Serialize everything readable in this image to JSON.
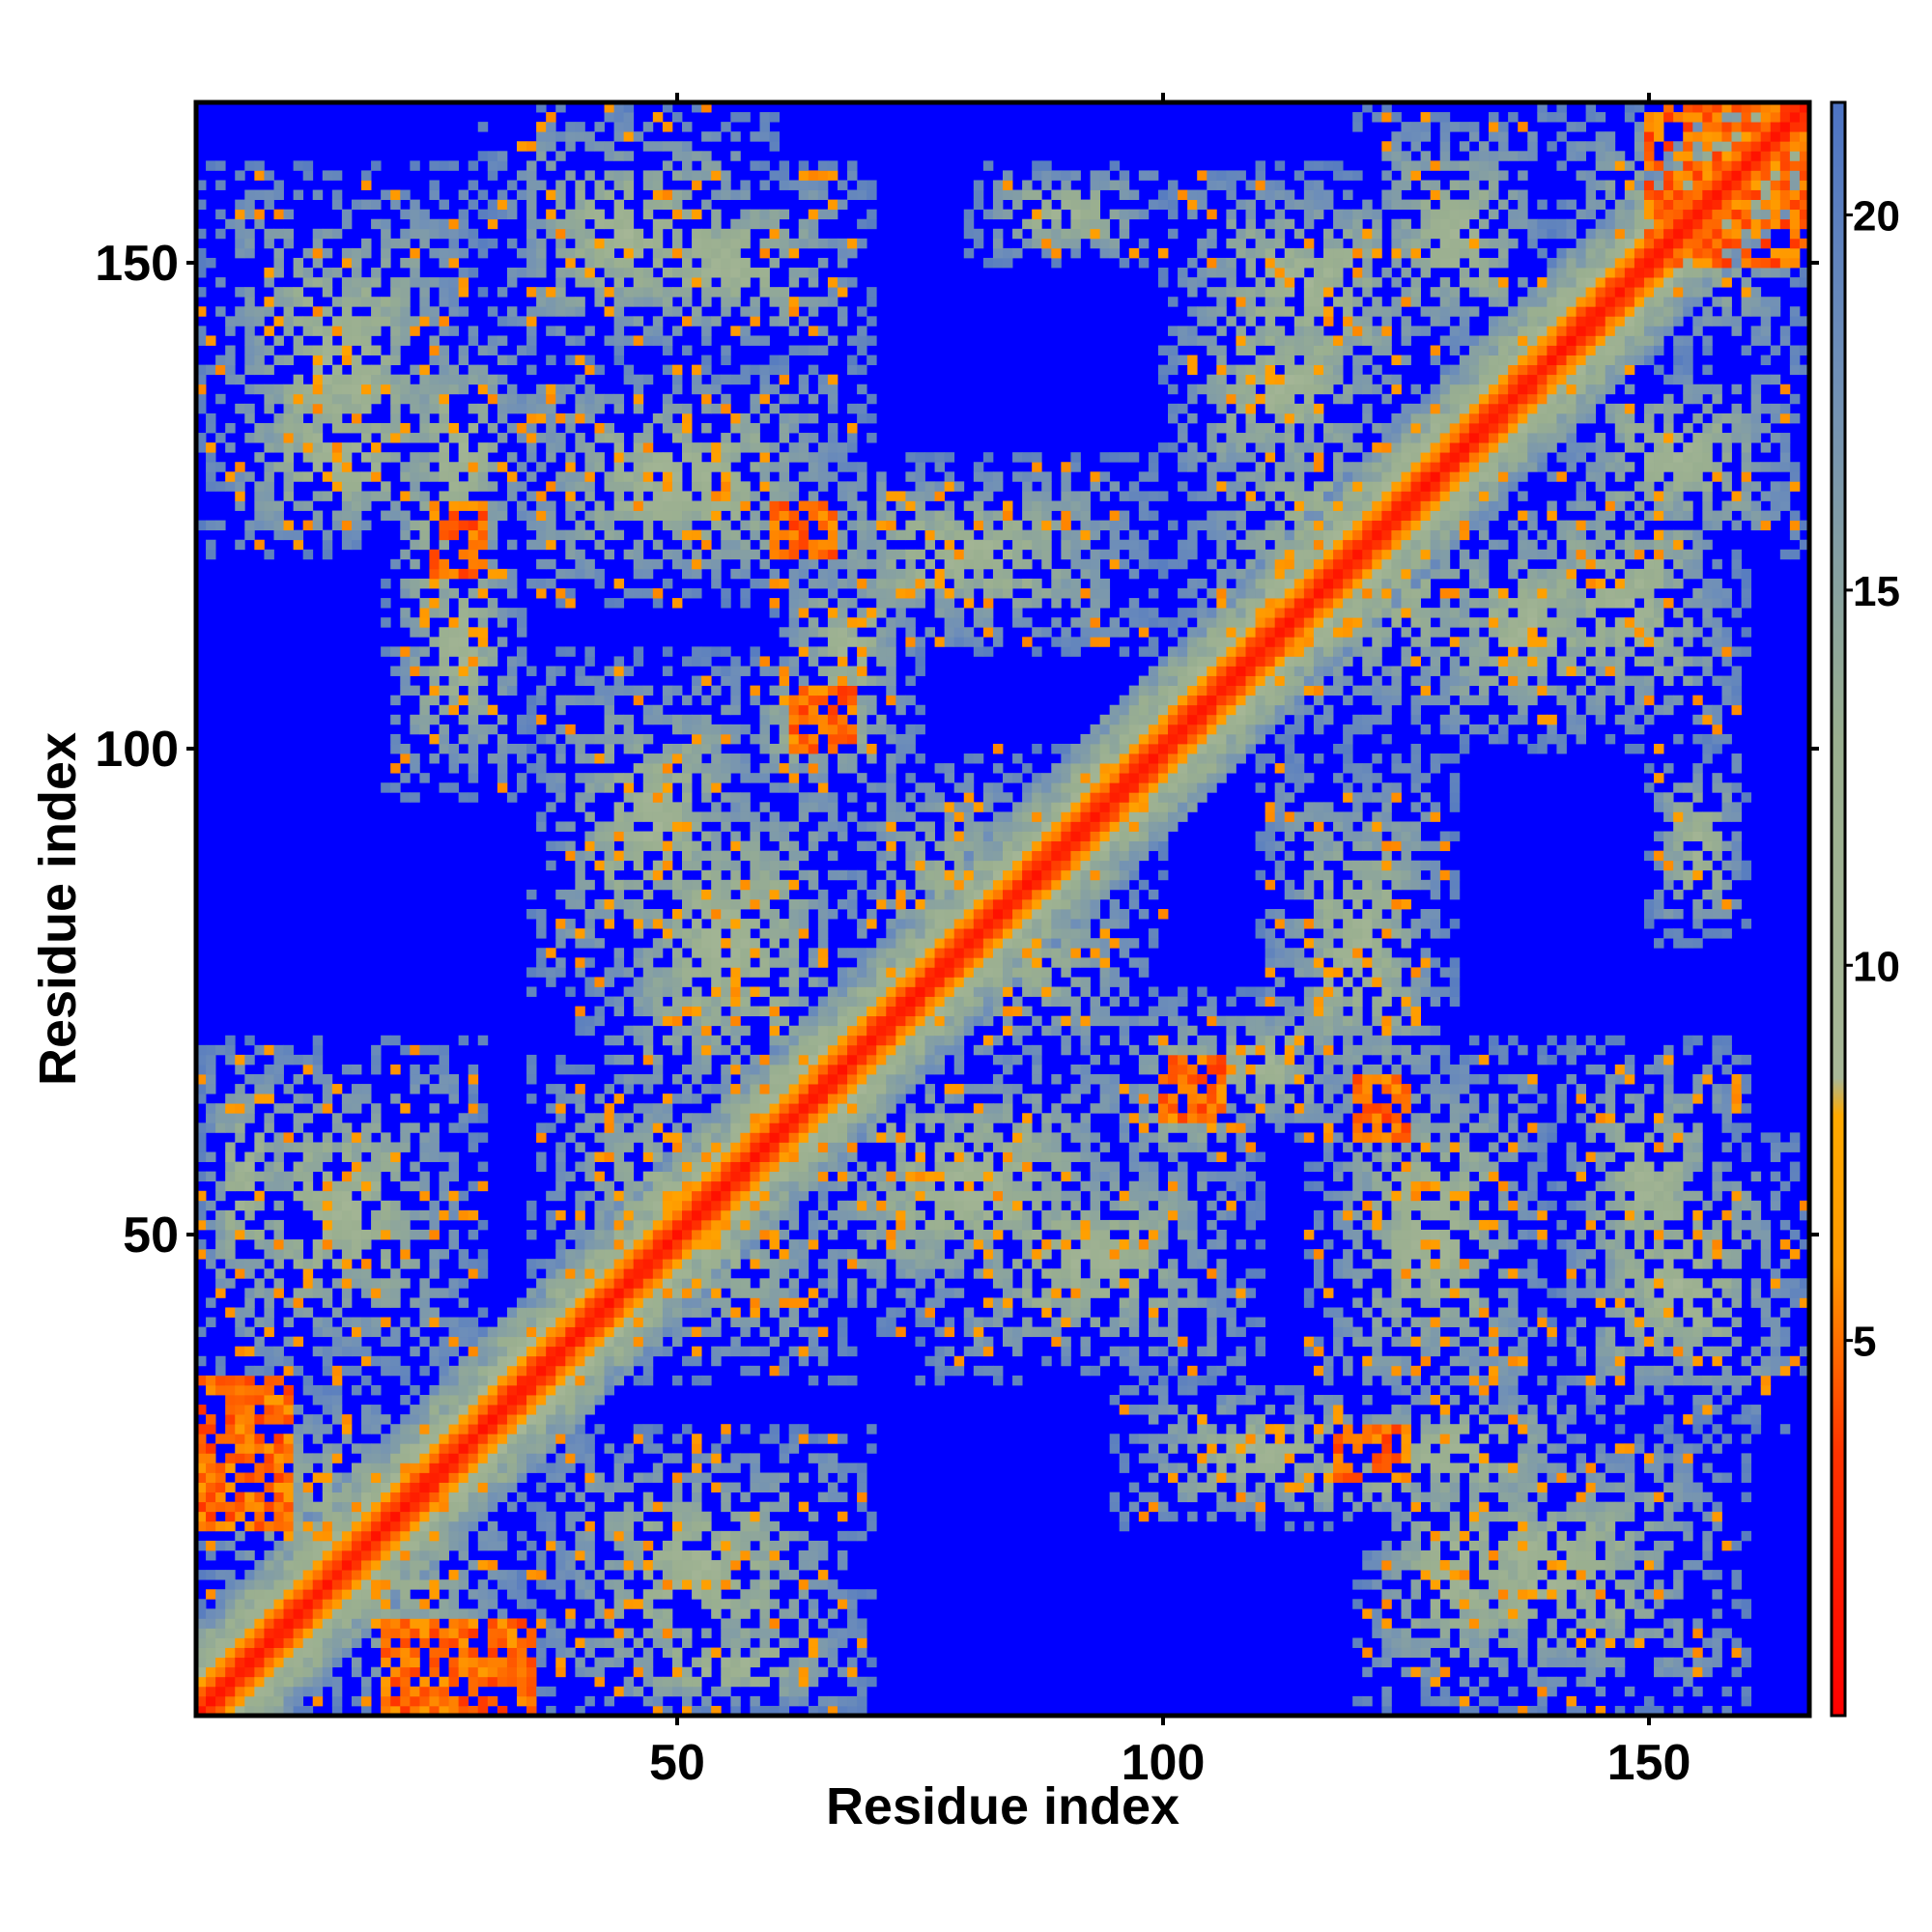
{
  "chart_data": {
    "type": "heatmap",
    "title": "",
    "xlabel": "Residue index",
    "ylabel": "Residue index",
    "n_residues": 166,
    "xlim": [
      1,
      166
    ],
    "ylim": [
      1,
      166
    ],
    "x_ticks": [
      50,
      100,
      150
    ],
    "y_ticks": [
      50,
      100,
      150
    ],
    "colorbar": {
      "ticks": [
        5,
        10,
        15,
        20
      ],
      "range": [
        0,
        21.5
      ],
      "colors": [
        {
          "stop": 0.0,
          "color": "#ff0000"
        },
        {
          "stop": 3.5,
          "color": "#ff3300"
        },
        {
          "stop": 6.0,
          "color": "#ff9900"
        },
        {
          "stop": 8.0,
          "color": "#ffaa00"
        },
        {
          "stop": 8.5,
          "color": "#a8b898"
        },
        {
          "stop": 13.0,
          "color": "#9aaf90"
        },
        {
          "stop": 18.0,
          "color": "#6f8fb8"
        },
        {
          "stop": 21.5,
          "color": "#4d74c4"
        }
      ]
    },
    "background_color": "#0000ff",
    "description_of_values": "Symmetric residue–residue distance matrix; near-diagonal distances < 5, distant pairs saturate (blue, ≥ 21.5).",
    "diagonal_band_width": 3,
    "contact_regions": [
      {
        "x": [
          1,
          35
        ],
        "y": [
          1,
          35
        ]
      },
      {
        "x": [
          1,
          30
        ],
        "y": [
          1,
          30
        ]
      },
      {
        "x": [
          5,
          30
        ],
        "y": [
          5,
          30
        ]
      },
      {
        "x": [
          35,
          68
        ],
        "y": [
          35,
          68
        ]
      },
      {
        "x": [
          40,
          65
        ],
        "y": [
          40,
          65
        ]
      },
      {
        "x": [
          65,
          100
        ],
        "y": [
          65,
          100
        ]
      },
      {
        "x": [
          70,
          95
        ],
        "y": [
          70,
          95
        ]
      },
      {
        "x": [
          100,
          140
        ],
        "y": [
          100,
          140
        ]
      },
      {
        "x": [
          110,
          135
        ],
        "y": [
          110,
          135
        ]
      },
      {
        "x": [
          140,
          166
        ],
        "y": [
          140,
          166
        ]
      },
      {
        "x": [
          145,
          166
        ],
        "y": [
          145,
          166
        ]
      },
      {
        "x": [
          1,
          30
        ],
        "y": [
          120,
          140
        ]
      },
      {
        "x": [
          20,
          30
        ],
        "y": [
          110,
          130
        ]
      },
      {
        "x": [
          30,
          70
        ],
        "y": [
          115,
          140
        ]
      },
      {
        "x": [
          40,
          70
        ],
        "y": [
          140,
          160
        ]
      },
      {
        "x": [
          40,
          70
        ],
        "y": [
          60,
          100
        ]
      },
      {
        "x": [
          55,
          75
        ],
        "y": [
          95,
          110
        ]
      },
      {
        "x": [
          75,
          110
        ],
        "y": [
          35,
          60
        ]
      },
      {
        "x": [
          100,
          120
        ],
        "y": [
          60,
          75
        ]
      },
      {
        "x": [
          95,
          125
        ],
        "y": [
          20,
          35
        ]
      },
      {
        "x": [
          115,
          145
        ],
        "y": [
          20,
          35
        ]
      },
      {
        "x": [
          120,
          160
        ],
        "y": [
          1,
          30
        ]
      },
      {
        "x": [
          125,
          150
        ],
        "y": [
          100,
          125
        ]
      },
      {
        "x": [
          140,
          166
        ],
        "y": [
          30,
          60
        ]
      },
      {
        "x": [
          1,
          30
        ],
        "y": [
          35,
          70
        ]
      },
      {
        "x": [
          40,
          70
        ],
        "y": [
          1,
          10
        ]
      },
      {
        "x": [
          80,
          100
        ],
        "y": [
          150,
          160
        ]
      },
      {
        "x": [
          120,
          140
        ],
        "y": [
          140,
          166
        ]
      },
      {
        "x": [
          100,
          130
        ],
        "y": [
          135,
          160
        ]
      },
      {
        "x": [
          110,
          130
        ],
        "y": [
          60,
          100
        ]
      }
    ],
    "close_contacts": [
      {
        "x": [
          1,
          10
        ],
        "y": [
          25,
          35
        ]
      },
      {
        "x": [
          20,
          30
        ],
        "y": [
          1,
          10
        ]
      },
      {
        "x": [
          25,
          30
        ],
        "y": [
          118,
          125
        ]
      },
      {
        "x": [
          60,
          66
        ],
        "y": [
          120,
          125
        ]
      },
      {
        "x": [
          62,
          68
        ],
        "y": [
          100,
          105
        ]
      },
      {
        "x": [
          100,
          106
        ],
        "y": [
          63,
          68
        ]
      },
      {
        "x": [
          120,
          124
        ],
        "y": [
          60,
          65
        ]
      },
      {
        "x": [
          118,
          124
        ],
        "y": [
          25,
          30
        ]
      },
      {
        "x": [
          150,
          166
        ],
        "y": [
          150,
          166
        ]
      }
    ]
  }
}
